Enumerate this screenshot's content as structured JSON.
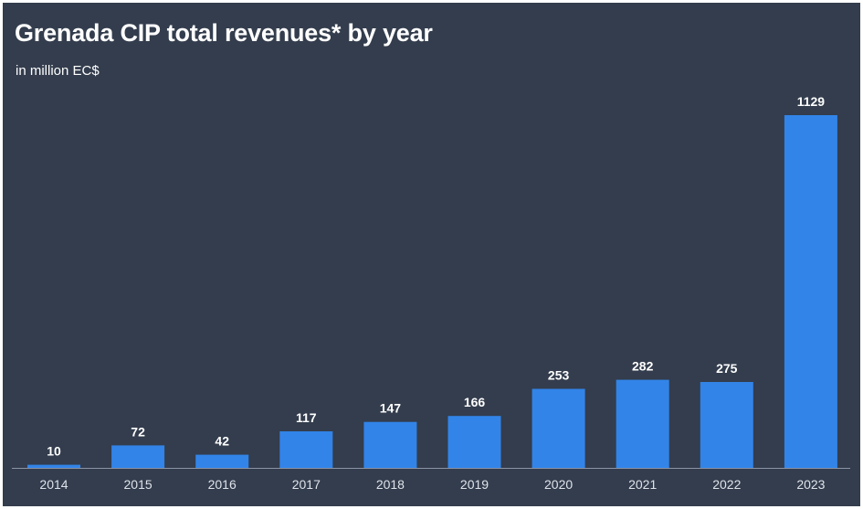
{
  "chart_data": {
    "type": "bar",
    "title": "Grenada CIP total revenues* by year",
    "subtitle": "in million EC$",
    "categories": [
      "2014",
      "2015",
      "2016",
      "2017",
      "2018",
      "2019",
      "2020",
      "2021",
      "2022",
      "2023"
    ],
    "values": [
      10,
      72,
      42,
      117,
      147,
      166,
      253,
      282,
      275,
      1129
    ],
    "xlabel": "",
    "ylabel": "",
    "ylim": [
      0,
      1129
    ],
    "grid": false,
    "legend": "none",
    "colors": {
      "background": "#333d4d",
      "bar": "#3284e8",
      "text": "#ffffff",
      "tick": "#dfe3ea",
      "axis": "#8a94a5"
    }
  }
}
